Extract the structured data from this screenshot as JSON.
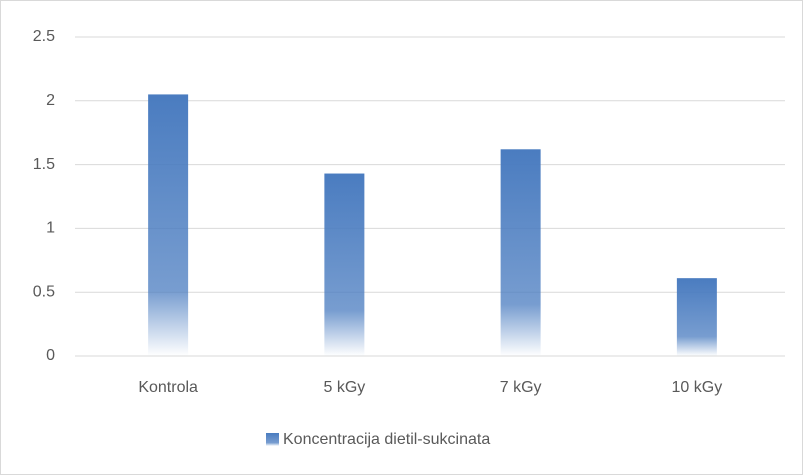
{
  "chart_data": {
    "type": "bar",
    "categories": [
      "Kontrola",
      "5 kGy",
      "7 kGy",
      "10 kGy"
    ],
    "series": [
      {
        "name": "Koncentracija dietil-sukcinata",
        "color": "#4a7cc0",
        "values": [
          2.05,
          1.43,
          1.62,
          0.61
        ]
      }
    ],
    "ylim": [
      0,
      2.5
    ],
    "yticks": [
      0,
      0.5,
      1,
      1.5,
      2,
      2.5
    ],
    "grid": true,
    "legend": "bottom"
  }
}
